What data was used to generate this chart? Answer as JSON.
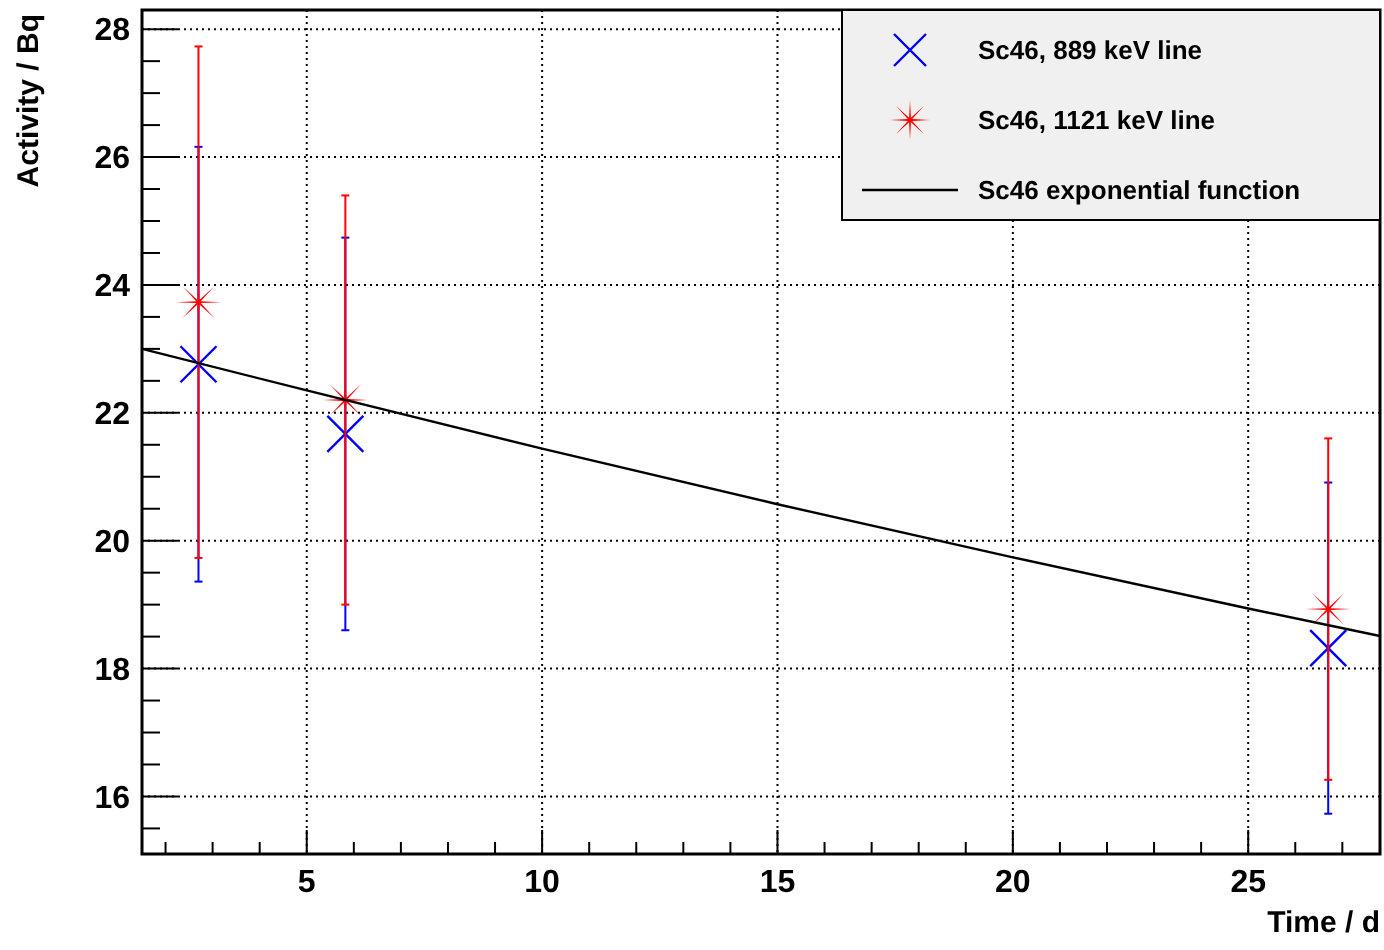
{
  "chart_data": {
    "type": "scatter",
    "xlabel": "Time / d",
    "ylabel": "Activity / Bq",
    "xlim": [
      1.5,
      27.8
    ],
    "ylim": [
      15.1,
      28.3
    ],
    "xticks": [
      {
        "value": 2,
        "label": null
      },
      {
        "value": 3,
        "label": null
      },
      {
        "value": 4,
        "label": null
      },
      5,
      {
        "value": 6,
        "label": null
      },
      {
        "value": 7,
        "label": null
      },
      {
        "value": 8,
        "label": null
      },
      {
        "value": 9,
        "label": null
      },
      10,
      {
        "value": 11,
        "label": null
      },
      {
        "value": 12,
        "label": null
      },
      {
        "value": 13,
        "label": null
      },
      {
        "value": 14,
        "label": null
      },
      15,
      {
        "value": 16,
        "label": null
      },
      {
        "value": 17,
        "label": null
      },
      {
        "value": 18,
        "label": null
      },
      {
        "value": 19,
        "label": null
      },
      20,
      {
        "value": 21,
        "label": null
      },
      {
        "value": 22,
        "label": null
      },
      {
        "value": 23,
        "label": null
      },
      {
        "value": 24,
        "label": null
      },
      25,
      {
        "value": 26,
        "label": null
      },
      {
        "value": 27,
        "label": null
      }
    ],
    "yticks": [
      {
        "value": 15.5,
        "label": null
      },
      16,
      {
        "value": 16.5,
        "label": null
      },
      {
        "value": 17,
        "label": null
      },
      {
        "value": 17.5,
        "label": null
      },
      18,
      {
        "value": 18.5,
        "label": null
      },
      {
        "value": 19,
        "label": null
      },
      {
        "value": 19.5,
        "label": null
      },
      20,
      {
        "value": 20.5,
        "label": null
      },
      {
        "value": 21,
        "label": null
      },
      {
        "value": 21.5,
        "label": null
      },
      22,
      {
        "value": 22.5,
        "label": null
      },
      {
        "value": 23,
        "label": null
      },
      {
        "value": 23.5,
        "label": null
      },
      24,
      {
        "value": 24.5,
        "label": null
      },
      {
        "value": 25,
        "label": null
      },
      {
        "value": 25.5,
        "label": null
      },
      26,
      {
        "value": 26.5,
        "label": null
      },
      {
        "value": 27,
        "label": null
      },
      {
        "value": 27.5,
        "label": null
      },
      28
    ],
    "grid": true,
    "legend": "top right",
    "series": [
      {
        "name": "Sc46, 889 keV line",
        "color": "#0000ff",
        "marker": "cross",
        "x": [
          2.7,
          5.82,
          26.7
        ],
        "values": [
          22.76,
          21.67,
          18.32
        ],
        "errors": [
          3.4,
          3.07,
          2.59
        ]
      },
      {
        "name": "Sc46, 1121 keV line",
        "color": "#ff0000",
        "marker": "star",
        "x": [
          2.7,
          5.82,
          26.7
        ],
        "values": [
          23.73,
          22.2,
          18.93
        ],
        "errors": [
          4.0,
          3.2,
          2.67
        ]
      },
      {
        "name": "Sc46 exponential function",
        "type": "line",
        "color": "#000000",
        "marker": "none",
        "line_style": "solid",
        "x": [
          1.5,
          5,
          10,
          15,
          20,
          25,
          27.8
        ],
        "values": [
          23.0,
          22.35,
          21.44,
          20.57,
          19.74,
          18.94,
          18.51
        ]
      }
    ]
  }
}
